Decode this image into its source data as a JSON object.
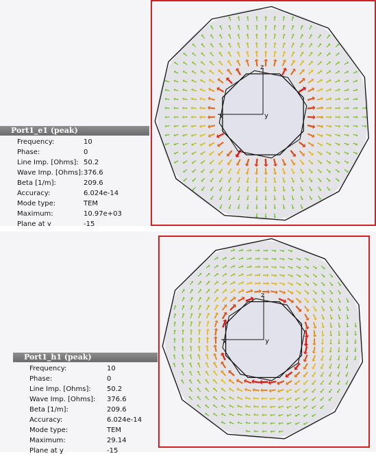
{
  "views": [
    {
      "title": "Port1_e1 (peak)",
      "field": "e",
      "rows": [
        {
          "label": "Frequency:",
          "value": "10"
        },
        {
          "label": "Phase:",
          "value": "0"
        },
        {
          "label": "Line Imp. [Ohms]:",
          "value": "50.2"
        },
        {
          "label": "Wave Imp. [Ohms]:",
          "value": "376.6"
        },
        {
          "label": "Beta [1/m]:",
          "value": "209.6"
        },
        {
          "label": "Accuracy:",
          "value": "6.024e-14"
        },
        {
          "label": "Mode type:",
          "value": "TEM"
        },
        {
          "label": "Maximum:",
          "value": "10.97e+03"
        },
        {
          "label": "Plane at y",
          "value": "-15"
        }
      ],
      "axes": {
        "x_label": "x",
        "y_label": "y",
        "z_label": "z"
      }
    },
    {
      "title": "Port1_h1 (peak)",
      "field": "h",
      "rows": [
        {
          "label": "Frequency:",
          "value": "10"
        },
        {
          "label": "Phase:",
          "value": "0"
        },
        {
          "label": "Line Imp. [Ohms]:",
          "value": "50.2"
        },
        {
          "label": "Wave Imp. [Ohms]:",
          "value": "376.6"
        },
        {
          "label": "Beta [1/m]:",
          "value": "209.6"
        },
        {
          "label": "Accuracy:",
          "value": "6.024e-14"
        },
        {
          "label": "Mode type:",
          "value": "TEM"
        },
        {
          "label": "Maximum:",
          "value": "29.14"
        },
        {
          "label": "Plane at y",
          "value": "-15"
        }
      ],
      "axes": {
        "x_label": "x",
        "y_label": "y",
        "z_label": "z"
      }
    }
  ],
  "colors": {
    "frame": "#d42020",
    "background": "#f5f5f7",
    "title_bar": "#7a7a7a",
    "conductor_fill": "#e2e2ec",
    "arrow_low": "#22bb22",
    "arrow_mid": "#e8c020",
    "arrow_high": "#d81818"
  }
}
